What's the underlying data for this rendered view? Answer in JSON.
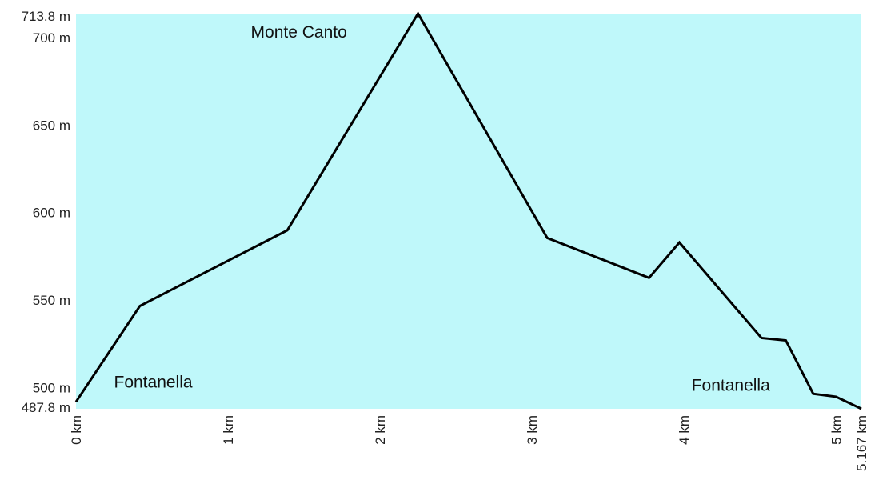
{
  "chart_data": {
    "type": "area",
    "title": "",
    "xlabel": "",
    "ylabel": "",
    "x_unit": "km",
    "y_unit": "m",
    "xlim": [
      0,
      5.167
    ],
    "ylim": [
      487.8,
      713.8
    ],
    "grid": false,
    "legend": "none",
    "colors": {
      "fill": "#bff8fa",
      "line": "#000000"
    },
    "x_ticks": [
      {
        "value": 0,
        "label": "0 km"
      },
      {
        "value": 1,
        "label": "1 km"
      },
      {
        "value": 2,
        "label": "2 km"
      },
      {
        "value": 3,
        "label": "3 km"
      },
      {
        "value": 4,
        "label": "4 km"
      },
      {
        "value": 5,
        "label": "5 km"
      },
      {
        "value": 5.167,
        "label": "5.167 km"
      }
    ],
    "y_ticks": [
      {
        "value": 713.8,
        "label": "713.8 m"
      },
      {
        "value": 700,
        "label": "700 m"
      },
      {
        "value": 650,
        "label": "650 m"
      },
      {
        "value": 600,
        "label": "600 m"
      },
      {
        "value": 550,
        "label": "550 m"
      },
      {
        "value": 500,
        "label": "500 m"
      },
      {
        "value": 487.8,
        "label": "487.8 m"
      }
    ],
    "series": [
      {
        "x": [
          0,
          0.42,
          1.39,
          2.25,
          3.1,
          3.77,
          3.97,
          4.51,
          4.67,
          4.85,
          5.0,
          5.167
        ],
        "y": [
          491.8,
          546.6,
          589.9,
          713.8,
          585.5,
          562.7,
          582.9,
          528.3,
          526.9,
          496.4,
          494.7,
          487.8
        ]
      }
    ],
    "annotations": [
      {
        "text": "Fontanella",
        "x": 0.25,
        "y": 500
      },
      {
        "text": "Monte Canto",
        "x": 1.15,
        "y": 700
      },
      {
        "text": "Fontanella",
        "x": 4.05,
        "y": 498
      }
    ]
  }
}
